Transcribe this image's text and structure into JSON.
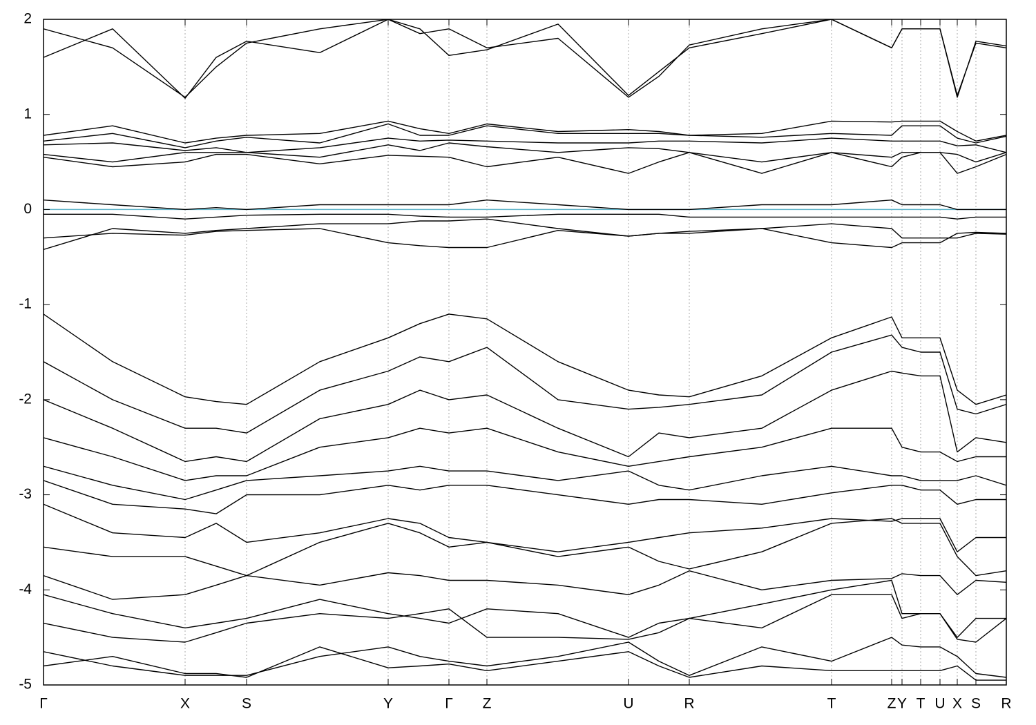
{
  "chart_data": {
    "type": "line",
    "x": [
      0,
      100,
      205,
      250,
      294,
      400,
      499,
      545,
      587,
      642,
      745,
      847,
      891,
      935,
      1040,
      1141,
      1228,
      1243,
      1270,
      1298,
      1323,
      1350,
      1394
    ],
    "xlim": [
      0,
      1394
    ],
    "xticks": [
      {
        "value": 0,
        "label": "Γ"
      },
      {
        "value": 205,
        "label": "X"
      },
      {
        "value": 294,
        "label": "S"
      },
      {
        "value": 499,
        "label": "Y"
      },
      {
        "value": 587,
        "label": "Γ"
      },
      {
        "value": 642,
        "label": "Z"
      },
      {
        "value": 847,
        "label": "U"
      },
      {
        "value": 935,
        "label": "R"
      },
      {
        "value": 1141,
        "label": "T"
      },
      {
        "value": 1228,
        "label": "Z"
      },
      {
        "value": 1243,
        "label": "Y"
      },
      {
        "value": 1270,
        "label": "T"
      },
      {
        "value": 1298,
        "label": "U"
      },
      {
        "value": 1323,
        "label": "X"
      },
      {
        "value": 1350,
        "label": "S"
      },
      {
        "value": 1394,
        "label": "R"
      }
    ],
    "ylim": [
      -5,
      2
    ],
    "yticks": [
      2,
      1,
      0,
      -1,
      -2,
      -3,
      -4,
      -5
    ],
    "xgrid": true,
    "reference_line": {
      "value": 0,
      "color": "#5fb3c8"
    },
    "series": [
      {
        "color": "#000000",
        "values": [
          1.9,
          1.7,
          1.18,
          1.5,
          1.75,
          1.9,
          2.0,
          1.9,
          1.62,
          1.68,
          1.95,
          1.2,
          1.45,
          1.7,
          1.85,
          2.0,
          1.7,
          1.9,
          1.9,
          1.9,
          1.2,
          1.75,
          1.7
        ]
      },
      {
        "color": "#000000",
        "values": [
          1.6,
          1.9,
          1.17,
          1.6,
          1.77,
          1.65,
          2.0,
          1.85,
          1.9,
          1.7,
          1.8,
          1.18,
          1.4,
          1.73,
          1.9,
          2.0,
          1.7,
          1.9,
          1.9,
          1.9,
          1.18,
          1.77,
          1.72
        ]
      },
      {
        "color": "#000000",
        "values": [
          0.78,
          0.88,
          0.7,
          0.75,
          0.78,
          0.8,
          0.93,
          0.85,
          0.8,
          0.9,
          0.82,
          0.84,
          0.82,
          0.78,
          0.8,
          0.93,
          0.92,
          0.93,
          0.93,
          0.93,
          0.82,
          0.72,
          0.78
        ]
      },
      {
        "color": "#000000",
        "values": [
          0.72,
          0.8,
          0.65,
          0.72,
          0.76,
          0.7,
          0.9,
          0.78,
          0.78,
          0.88,
          0.8,
          0.8,
          0.8,
          0.78,
          0.76,
          0.8,
          0.78,
          0.88,
          0.88,
          0.88,
          0.75,
          0.7,
          0.77
        ]
      },
      {
        "color": "#000000",
        "values": [
          0.68,
          0.7,
          0.62,
          0.65,
          0.6,
          0.65,
          0.75,
          0.72,
          0.73,
          0.72,
          0.7,
          0.7,
          0.72,
          0.72,
          0.7,
          0.75,
          0.72,
          0.72,
          0.72,
          0.72,
          0.67,
          0.68,
          0.6
        ]
      },
      {
        "color": "#000000",
        "values": [
          0.58,
          0.5,
          0.6,
          0.6,
          0.6,
          0.55,
          0.68,
          0.62,
          0.7,
          0.66,
          0.6,
          0.65,
          0.64,
          0.6,
          0.5,
          0.6,
          0.55,
          0.6,
          0.6,
          0.6,
          0.58,
          0.5,
          0.6
        ]
      },
      {
        "color": "#000000",
        "values": [
          0.55,
          0.45,
          0.5,
          0.58,
          0.58,
          0.48,
          0.57,
          0.56,
          0.55,
          0.45,
          0.55,
          0.38,
          0.5,
          0.6,
          0.38,
          0.6,
          0.45,
          0.55,
          0.6,
          0.6,
          0.38,
          0.45,
          0.58
        ]
      },
      {
        "color": "#000000",
        "values": [
          0.1,
          0.05,
          0.0,
          0.02,
          0.0,
          0.05,
          0.05,
          0.05,
          0.05,
          0.1,
          0.05,
          0.0,
          0.0,
          0.0,
          0.05,
          0.05,
          0.1,
          0.05,
          0.05,
          0.05,
          0.0,
          0.0,
          0.0
        ]
      },
      {
        "color": "#000000",
        "values": [
          -0.05,
          -0.05,
          -0.1,
          -0.08,
          -0.06,
          -0.05,
          -0.05,
          -0.07,
          -0.08,
          -0.08,
          -0.05,
          -0.05,
          -0.05,
          -0.08,
          -0.08,
          -0.08,
          -0.08,
          -0.08,
          -0.08,
          -0.08,
          -0.1,
          -0.08,
          -0.08
        ]
      },
      {
        "color": "#000000",
        "values": [
          -0.3,
          -0.25,
          -0.27,
          -0.23,
          -0.22,
          -0.2,
          -0.35,
          -0.38,
          -0.4,
          -0.4,
          -0.22,
          -0.28,
          -0.25,
          -0.23,
          -0.2,
          -0.35,
          -0.4,
          -0.35,
          -0.35,
          -0.35,
          -0.25,
          -0.24,
          -0.25
        ]
      },
      {
        "color": "#000000",
        "values": [
          -0.42,
          -0.2,
          -0.25,
          -0.22,
          -0.2,
          -0.15,
          -0.15,
          -0.12,
          -0.12,
          -0.1,
          -0.2,
          -0.28,
          -0.25,
          -0.25,
          -0.2,
          -0.15,
          -0.2,
          -0.3,
          -0.3,
          -0.3,
          -0.3,
          -0.25,
          -0.26
        ]
      },
      {
        "color": "#000000",
        "values": [
          -1.1,
          -1.6,
          -1.97,
          -2.02,
          -2.05,
          -1.6,
          -1.35,
          -1.2,
          -1.1,
          -1.15,
          -1.6,
          -1.9,
          -1.95,
          -1.97,
          -1.75,
          -1.35,
          -1.13,
          -1.35,
          -1.35,
          -1.35,
          -1.9,
          -2.05,
          -1.95
        ]
      },
      {
        "color": "#000000",
        "values": [
          -1.6,
          -2.0,
          -2.3,
          -2.3,
          -2.35,
          -1.9,
          -1.7,
          -1.55,
          -1.6,
          -1.45,
          -2.0,
          -2.1,
          -2.08,
          -2.05,
          -1.95,
          -1.5,
          -1.32,
          -1.45,
          -1.5,
          -1.5,
          -2.1,
          -2.15,
          -2.05
        ]
      },
      {
        "color": "#000000",
        "values": [
          -2.0,
          -2.3,
          -2.65,
          -2.6,
          -2.65,
          -2.2,
          -2.05,
          -1.9,
          -2.0,
          -1.95,
          -2.3,
          -2.6,
          -2.35,
          -2.4,
          -2.3,
          -1.9,
          -1.7,
          -1.72,
          -1.75,
          -1.75,
          -2.55,
          -2.4,
          -2.45
        ]
      },
      {
        "color": "#000000",
        "values": [
          -2.4,
          -2.6,
          -2.85,
          -2.8,
          -2.8,
          -2.5,
          -2.4,
          -2.3,
          -2.35,
          -2.3,
          -2.55,
          -2.7,
          -2.65,
          -2.6,
          -2.5,
          -2.3,
          -2.3,
          -2.5,
          -2.55,
          -2.55,
          -2.65,
          -2.6,
          -2.6
        ]
      },
      {
        "color": "#000000",
        "values": [
          -2.7,
          -2.9,
          -3.05,
          -2.95,
          -2.85,
          -2.8,
          -2.75,
          -2.7,
          -2.75,
          -2.75,
          -2.85,
          -2.75,
          -2.9,
          -2.95,
          -2.8,
          -2.7,
          -2.8,
          -2.8,
          -2.85,
          -2.85,
          -2.85,
          -2.8,
          -2.9
        ]
      },
      {
        "color": "#000000",
        "values": [
          -2.85,
          -3.1,
          -3.15,
          -3.2,
          -3.0,
          -3.0,
          -2.9,
          -2.95,
          -2.9,
          -2.9,
          -3.0,
          -3.1,
          -3.05,
          -3.05,
          -3.1,
          -2.98,
          -2.9,
          -2.9,
          -2.95,
          -2.95,
          -3.1,
          -3.05,
          -3.05
        ]
      },
      {
        "color": "#000000",
        "values": [
          -3.1,
          -3.4,
          -3.45,
          -3.3,
          -3.5,
          -3.4,
          -3.25,
          -3.3,
          -3.45,
          -3.5,
          -3.6,
          -3.5,
          -3.45,
          -3.4,
          -3.35,
          -3.25,
          -3.28,
          -3.25,
          -3.25,
          -3.25,
          -3.6,
          -3.45,
          -3.45
        ]
      },
      {
        "color": "#000000",
        "values": [
          -3.55,
          -3.65,
          -3.65,
          -3.75,
          -3.85,
          -3.5,
          -3.3,
          -3.4,
          -3.55,
          -3.5,
          -3.65,
          -3.55,
          -3.7,
          -3.78,
          -3.6,
          -3.3,
          -3.25,
          -3.3,
          -3.3,
          -3.3,
          -3.65,
          -3.85,
          -3.8
        ]
      },
      {
        "color": "#000000",
        "values": [
          -3.85,
          -4.1,
          -4.05,
          -3.95,
          -3.85,
          -3.95,
          -3.82,
          -3.85,
          -3.9,
          -3.9,
          -3.95,
          -4.05,
          -3.95,
          -3.8,
          -4.0,
          -3.9,
          -3.88,
          -3.83,
          -3.85,
          -3.85,
          -4.05,
          -3.9,
          -3.92
        ]
      },
      {
        "color": "#000000",
        "values": [
          -4.05,
          -4.25,
          -4.4,
          -4.35,
          -4.3,
          -4.1,
          -4.25,
          -4.3,
          -4.35,
          -4.2,
          -4.25,
          -4.5,
          -4.35,
          -4.3,
          -4.4,
          -4.05,
          -4.05,
          -4.3,
          -4.25,
          -4.25,
          -4.5,
          -4.3,
          -4.3
        ]
      },
      {
        "color": "#000000",
        "values": [
          -4.35,
          -4.5,
          -4.55,
          -4.45,
          -4.35,
          -4.25,
          -4.3,
          -4.25,
          -4.2,
          -4.5,
          -4.5,
          -4.52,
          -4.45,
          -4.3,
          -4.15,
          -4.0,
          -3.9,
          -4.25,
          -4.25,
          -4.25,
          -4.52,
          -4.55,
          -4.3
        ]
      },
      {
        "color": "#000000",
        "values": [
          -4.65,
          -4.8,
          -4.9,
          -4.9,
          -4.9,
          -4.7,
          -4.6,
          -4.7,
          -4.75,
          -4.8,
          -4.7,
          -4.55,
          -4.75,
          -4.9,
          -4.6,
          -4.75,
          -4.5,
          -4.58,
          -4.6,
          -4.6,
          -4.7,
          -4.88,
          -4.92
        ]
      },
      {
        "color": "#000000",
        "values": [
          -4.8,
          -4.7,
          -4.88,
          -4.88,
          -4.92,
          -4.6,
          -4.82,
          -4.8,
          -4.78,
          -4.85,
          -4.75,
          -4.65,
          -4.8,
          -4.92,
          -4.8,
          -4.85,
          -4.85,
          -4.85,
          -4.85,
          -4.85,
          -4.8,
          -4.95,
          -4.95
        ]
      }
    ]
  }
}
